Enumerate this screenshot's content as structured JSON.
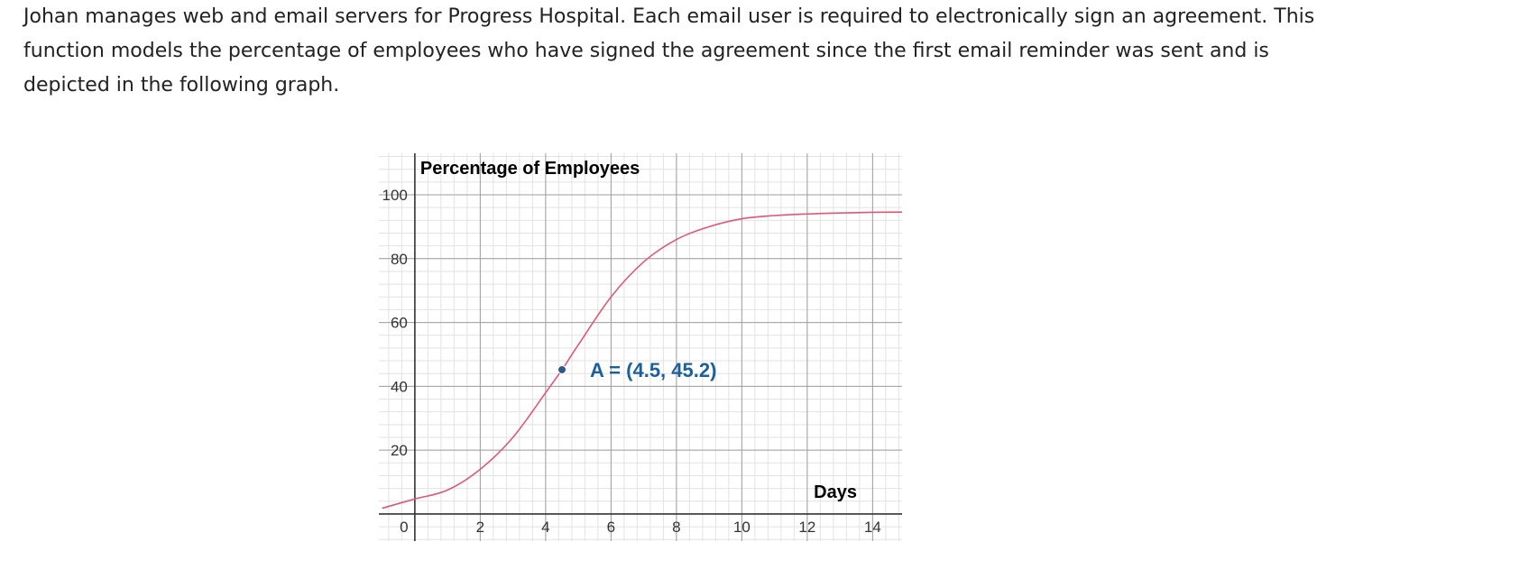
{
  "problem": {
    "text": "Johan manages web and email servers for Progress Hospital. Each email user is required to electronically sign an agreement. This function models the percentage of employees who have signed the agreement since the first email reminder was sent and is depicted in the following graph."
  },
  "chart_data": {
    "type": "line",
    "ylabel": "Percentage of Employees",
    "xlabel": "Days",
    "xlim": [
      -1.1,
      14.9
    ],
    "ylim": [
      -8.5,
      113
    ],
    "x_ticks": [
      0,
      2,
      4,
      6,
      8,
      10,
      12,
      14
    ],
    "x_tick_labels": [
      "0",
      "2",
      "4",
      "6",
      "8",
      "10",
      "12",
      "14"
    ],
    "y_ticks": [
      20,
      40,
      60,
      80,
      100
    ],
    "y_tick_labels": [
      "20",
      "40",
      "60",
      "80",
      "100"
    ],
    "grid": true,
    "series": [
      {
        "x": [
          -1,
          0,
          1,
          2,
          3,
          4,
          4.5,
          5,
          6,
          7,
          8,
          9,
          10,
          11,
          12,
          13,
          14,
          15
        ],
        "y": [
          1.8,
          4.7,
          7.5,
          14,
          24,
          38,
          45.2,
          53,
          68,
          79,
          86,
          90,
          92.5,
          93.5,
          94,
          94.3,
          94.5,
          94.6
        ]
      }
    ],
    "points": [
      {
        "label": "A = (4.5, 45.2)",
        "x": 4.5,
        "y": 45.2
      }
    ],
    "colors": {
      "curve": "#e05775",
      "point": "#2c5b88",
      "label": "#1b5f9c",
      "major_grid": "#9e9e9e",
      "minor_grid": "#e2e2e2",
      "axis": "#333333"
    }
  }
}
